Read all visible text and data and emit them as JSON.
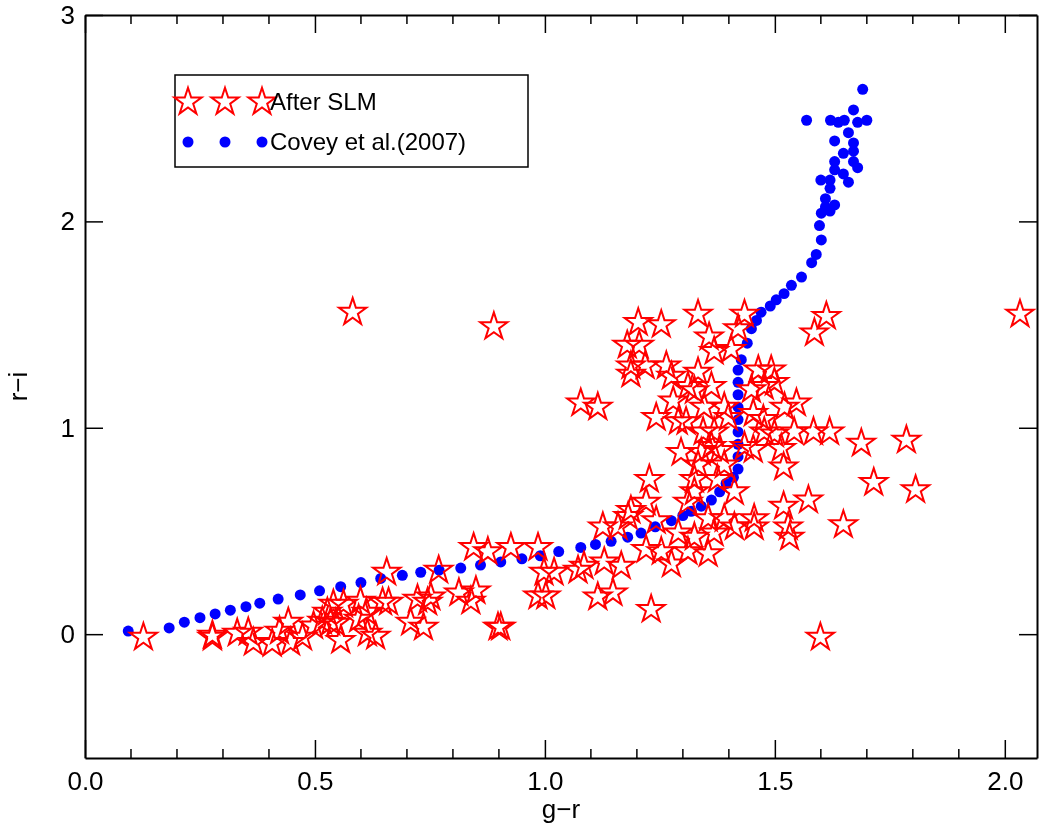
{
  "chart_data": {
    "type": "scatter",
    "xlabel": "g−r",
    "ylabel": "r−i",
    "xlim": [
      0,
      2.07
    ],
    "ylim": [
      -0.6,
      3
    ],
    "xticks": [
      {
        "value": 0,
        "label": "0.0"
      },
      {
        "value": 0.1,
        "label": null
      },
      {
        "value": 0.2,
        "label": null
      },
      {
        "value": 0.3,
        "label": null
      },
      {
        "value": 0.4,
        "label": null
      },
      {
        "value": 0.5,
        "label": "0.5"
      },
      {
        "value": 0.6,
        "label": null
      },
      {
        "value": 0.7,
        "label": null
      },
      {
        "value": 0.8,
        "label": null
      },
      {
        "value": 0.9,
        "label": null
      },
      {
        "value": 1,
        "label": "1.0"
      },
      {
        "value": 1.1,
        "label": null
      },
      {
        "value": 1.2,
        "label": null
      },
      {
        "value": 1.3,
        "label": null
      },
      {
        "value": 1.4,
        "label": null
      },
      {
        "value": 1.5,
        "label": "1.5"
      },
      {
        "value": 1.6,
        "label": null
      },
      {
        "value": 1.7,
        "label": null
      },
      {
        "value": 1.8,
        "label": null
      },
      {
        "value": 1.9,
        "label": null
      },
      {
        "value": 2,
        "label": "2.0"
      }
    ],
    "yticks": [
      0,
      1,
      2,
      3
    ],
    "grid": false,
    "legend": "top left",
    "series": [
      {
        "name": "After SLM",
        "color": "#ff0000",
        "marker": "star",
        "x": [
          0.127,
          0.277,
          0.277,
          0.331,
          0.355,
          0.366,
          0.407,
          0.423,
          0.442,
          0.447,
          0.473,
          0.497,
          0.516,
          0.527,
          0.534,
          0.54,
          0.545,
          0.556,
          0.562,
          0.595,
          0.599,
          0.612,
          0.614,
          0.632,
          0.656,
          0.647,
          0.66,
          0.708,
          0.736,
          0.723,
          0.745,
          0.752,
          0.769,
          0.813,
          0.839,
          0.845,
          0.876,
          0.85,
          0.898,
          0.582,
          0.889,
          1.203,
          1.253,
          1.333,
          1.179,
          1.205,
          1.187,
          1.187,
          1.218,
          1.264,
          1.275,
          1.078,
          1.115,
          1.357,
          1.368,
          1.405,
          1.434,
          1.42,
          1.333,
          1.311,
          1.325,
          1.362,
          1.279,
          1.346,
          1.39,
          1.242,
          1.29,
          1.307,
          1.344,
          1.368,
          1.399,
          1.296,
          1.34,
          1.362,
          1.379,
          1.333,
          1.39,
          1.227,
          1.325,
          1.375,
          1.325,
          1.311,
          1.22,
          1.187,
          1.412,
          1.181,
          1.126,
          1.159,
          1.242,
          1.355,
          1.39,
          1.412,
          1.368,
          1.29,
          1.325,
          1.22,
          1.253,
          1.311,
          1.355,
          1.275,
          1.129,
          1.166,
          1.085,
          0.998,
          1.02,
          1.072,
          0.985,
          0.926,
          0.985,
          1.002,
          1.115,
          1.148,
          1.231,
          0.904,
          1.599,
          1.455,
          1.455,
          1.519,
          1.529,
          1.532,
          1.573,
          1.649,
          1.715,
          1.688,
          1.519,
          1.514,
          1.499,
          1.542,
          1.584,
          1.619,
          1.477,
          1.453,
          1.475,
          1.521,
          1.547,
          1.449,
          1.477,
          1.499,
          1.464,
          1.492,
          1.434,
          1.453,
          1.586,
          1.612,
          1.786,
          1.806,
          2.033
        ],
        "values": [
          -0.015,
          -0.005,
          -0.015,
          0.005,
          0.01,
          -0.04,
          -0.045,
          0.015,
          0.058,
          -0.04,
          -0.015,
          0.04,
          0.063,
          0.106,
          0.058,
          0.145,
          0.053,
          -0.03,
          0.145,
          0.073,
          0.16,
          0.106,
          0.005,
          -0.01,
          0.3,
          0.155,
          0.155,
          0.058,
          0.034,
          0.17,
          0.155,
          0.18,
          0.31,
          0.2,
          0.16,
          0.42,
          0.4,
          0.21,
          0.034,
          1.56,
          1.49,
          1.51,
          1.5,
          1.55,
          1.4,
          1.4,
          1.3,
          1.26,
          1.3,
          1.3,
          1.25,
          1.12,
          1.1,
          1.44,
          1.37,
          1.38,
          1.55,
          1.48,
          1.27,
          1.2,
          1.18,
          1.2,
          1.13,
          1.1,
          1.1,
          1.05,
          1.03,
          1.03,
          0.98,
          0.98,
          1.05,
          0.88,
          0.88,
          0.91,
          0.89,
          0.82,
          0.82,
          0.75,
          0.75,
          0.75,
          0.69,
          0.64,
          0.64,
          0.6,
          0.69,
          0.57,
          0.52,
          0.52,
          0.55,
          0.56,
          0.56,
          0.52,
          0.49,
          0.49,
          0.47,
          0.41,
          0.4,
          0.4,
          0.39,
          0.34,
          0.35,
          0.33,
          0.33,
          0.3,
          0.3,
          0.31,
          0.42,
          0.42,
          0.185,
          0.185,
          0.18,
          0.2,
          0.12,
          0.034,
          -0.015,
          0.56,
          0.52,
          0.62,
          0.52,
          0.47,
          0.65,
          0.53,
          0.735,
          0.925,
          0.81,
          0.9,
          0.97,
          0.98,
          0.98,
          0.98,
          0.98,
          1.07,
          1.04,
          1.1,
          1.12,
          1.185,
          1.2,
          1.22,
          1.28,
          1.28,
          0.91,
          0.895,
          1.46,
          1.54,
          0.94,
          0.7,
          1.55
        ]
      },
      {
        "name": "Covey et al.(2007)",
        "color": "#0000ff",
        "marker": "circle",
        "x": [
          0.094,
          0.183,
          0.216,
          0.25,
          0.283,
          0.316,
          0.35,
          0.38,
          0.42,
          0.468,
          0.51,
          0.556,
          0.6,
          0.643,
          0.69,
          0.73,
          0.77,
          0.817,
          0.86,
          0.904,
          0.95,
          0.99,
          1.03,
          1.078,
          1.11,
          1.144,
          1.18,
          1.209,
          1.24,
          1.275,
          1.3,
          1.318,
          1.34,
          1.362,
          1.38,
          1.394,
          1.41,
          1.42,
          1.42,
          1.42,
          1.42,
          1.42,
          1.42,
          1.42,
          1.42,
          1.42,
          1.427,
          1.44,
          1.449,
          1.46,
          1.47,
          1.49,
          1.503,
          1.52,
          1.536,
          1.558,
          1.58,
          1.59,
          1.601,
          1.597,
          1.601,
          1.61,
          1.691,
          1.671,
          1.569,
          1.621,
          1.638,
          1.651,
          1.68,
          1.7,
          1.66,
          1.63,
          1.671,
          1.649,
          1.671,
          1.63,
          1.671,
          1.68,
          1.63,
          1.649,
          1.6,
          1.62,
          1.66,
          1.62,
          1.61,
          1.63,
          1.62
        ],
        "values": [
          0.015,
          0.03,
          0.058,
          0.08,
          0.098,
          0.116,
          0.133,
          0.15,
          0.17,
          0.19,
          0.21,
          0.23,
          0.25,
          0.27,
          0.285,
          0.3,
          0.31,
          0.32,
          0.335,
          0.35,
          0.365,
          0.38,
          0.4,
          0.42,
          0.435,
          0.45,
          0.47,
          0.49,
          0.52,
          0.55,
          0.575,
          0.595,
          0.62,
          0.65,
          0.69,
          0.73,
          0.76,
          0.8,
          0.86,
          0.92,
          0.98,
          1.04,
          1.1,
          1.16,
          1.22,
          1.28,
          1.33,
          1.41,
          1.48,
          1.52,
          1.56,
          1.59,
          1.62,
          1.65,
          1.69,
          1.73,
          1.8,
          1.84,
          1.91,
          1.98,
          2.04,
          2.07,
          2.64,
          2.54,
          2.49,
          2.49,
          2.48,
          2.49,
          2.48,
          2.49,
          2.43,
          2.39,
          2.38,
          2.33,
          2.34,
          2.29,
          2.29,
          2.26,
          2.25,
          2.23,
          2.2,
          2.2,
          2.19,
          2.16,
          2.11,
          2.08,
          2.05
        ]
      }
    ]
  }
}
